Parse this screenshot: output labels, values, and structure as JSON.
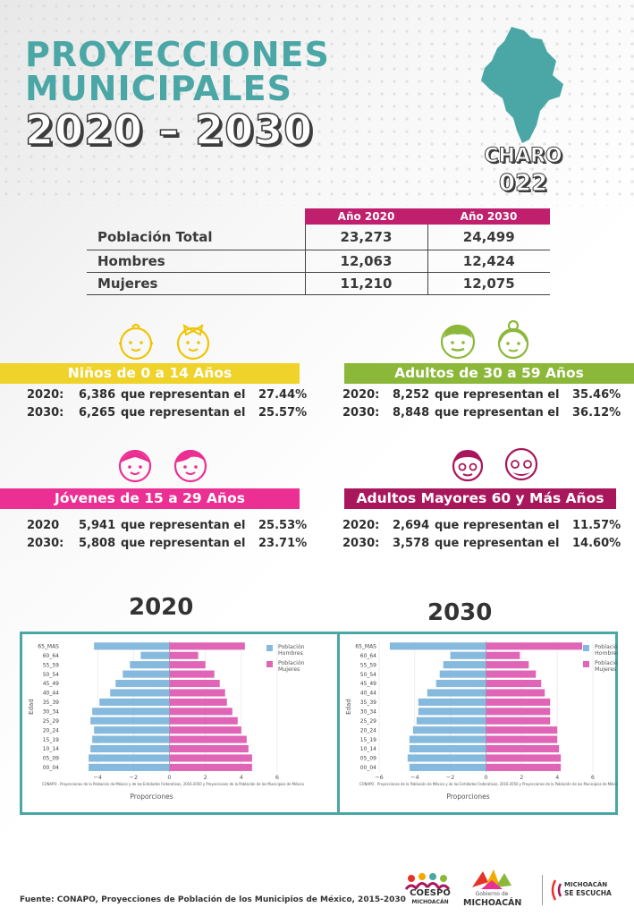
{
  "header": {
    "title_line1": "PROYECCIONES",
    "title_line2": "MUNICIPALES",
    "title_line3": "2020 – 2030",
    "municipality": "CHARO",
    "code": "022"
  },
  "colors": {
    "teal": "#4aa7a6",
    "magenta": "#bf1f6c",
    "yellow": "#f0d32a",
    "green": "#8cb83a",
    "pink": "#ec2f92",
    "purple": "#a8175c",
    "hombres": "#86b9de",
    "mujeres": "#e065b6"
  },
  "table": {
    "headers": [
      "Año 2020",
      "Año 2030"
    ],
    "rows": [
      {
        "label": "Población Total",
        "y2020": "23,273",
        "y2030": "24,499"
      },
      {
        "label": "Hombres",
        "y2020": "12,063",
        "y2030": "12,424"
      },
      {
        "label": "Mujeres",
        "y2020": "11,210",
        "y2030": "12,075"
      }
    ]
  },
  "groups": {
    "ninos": {
      "title": "Niños de 0 a 14 Años",
      "r1": {
        "year": "2020:",
        "count": "6,386",
        "text": "que representan el",
        "pct": "27.44%"
      },
      "r2": {
        "year": "2030:",
        "count": "6,265",
        "text": "que representan el",
        "pct": "25.57%"
      }
    },
    "adultos": {
      "title": "Adultos de 30 a 59 Años",
      "r1": {
        "year": "2020:",
        "count": "8,252",
        "text": "que representan el",
        "pct": "35.46%"
      },
      "r2": {
        "year": "2030:",
        "count": "8,848",
        "text": "que representan el",
        "pct": "36.12%"
      }
    },
    "jovenes": {
      "title": "Jóvenes de 15 a 29 Años",
      "r1": {
        "year": "2020",
        "count": "5,941",
        "text": "que representan el",
        "pct": "25.53%"
      },
      "r2": {
        "year": "2030:",
        "count": "5,808",
        "text": "que representan el",
        "pct": "23.71%"
      }
    },
    "mayores": {
      "title": "Adultos Mayores  60 y Más Años",
      "r1": {
        "year": "2020:",
        "count": "2,694",
        "text": "que representan el",
        "pct": "11.57%"
      },
      "r2": {
        "year": "2030:",
        "count": "3,578",
        "text": "que representan el",
        "pct": "14.60%"
      }
    }
  },
  "icons": [
    "baby-boy-icon",
    "baby-girl-icon",
    "adult-man-icon",
    "adult-woman-icon",
    "young-girl-icon",
    "young-boy-icon",
    "elder-woman-icon",
    "elder-man-icon"
  ],
  "chart_data": [
    {
      "type": "bar",
      "title": "2020",
      "orientation": "horizontal",
      "categories": [
        "00_04",
        "05_09",
        "10_14",
        "15_19",
        "20_24",
        "25_29",
        "30_34",
        "35_39",
        "40_44",
        "45_49",
        "50_54",
        "55_59",
        "60_64",
        "65_MAS"
      ],
      "series": [
        {
          "name": "Población Hombres",
          "values": [
            -4.5,
            -4.5,
            -4.4,
            -4.3,
            -4.2,
            -4.4,
            -4.3,
            -3.9,
            -3.3,
            -3.0,
            -2.6,
            -2.2,
            -1.6,
            -4.2
          ]
        },
        {
          "name": "Población Mujeres",
          "values": [
            4.6,
            4.6,
            4.4,
            4.3,
            4.0,
            3.8,
            3.5,
            3.2,
            3.1,
            2.8,
            2.5,
            2.0,
            1.6,
            4.2
          ]
        }
      ],
      "xlabel": "Proporciones",
      "ylabel": "Edad",
      "xticks": [
        "−4",
        "−2",
        "0",
        "2",
        "4",
        "6"
      ],
      "xlim": [
        -6,
        6
      ],
      "note": "CONAPO . Proyecciones de la Población de México y de las Entidades Federativas, 2016-2050 y Proyecciones de la Población de los Municipios de México"
    },
    {
      "type": "bar",
      "title": "2030",
      "orientation": "horizontal",
      "categories": [
        "00_04",
        "05_09",
        "10_14",
        "15_19",
        "20_24",
        "25_29",
        "30_34",
        "35_39",
        "40_44",
        "45_49",
        "50_54",
        "55_59",
        "60_64",
        "65_MAS"
      ],
      "series": [
        {
          "name": "Población Hombres",
          "values": [
            -4.3,
            -4.4,
            -4.3,
            -4.3,
            -4.1,
            -3.9,
            -3.8,
            -3.8,
            -3.3,
            -2.8,
            -2.6,
            -2.4,
            -2.0,
            -5.4
          ]
        },
        {
          "name": "Población Mujeres",
          "values": [
            4.2,
            4.2,
            4.1,
            4.0,
            4.0,
            3.6,
            3.6,
            3.6,
            3.3,
            3.1,
            2.8,
            2.4,
            1.9,
            5.4
          ]
        }
      ],
      "xlabel": "Proporciones",
      "ylabel": "Edad",
      "xticks": [
        "−6",
        "−4",
        "−2",
        "0",
        "2",
        "4",
        "6"
      ],
      "xlim": [
        -6,
        6
      ],
      "note": "CONAPO . Proyecciones de la Población de México y de las Entidades Federativas, 2016-2050 y Proyecciones de la Población de los Municipios de México"
    }
  ],
  "footer": {
    "source": "Fuente: CONAPO, Proyecciones de Población de los Municipios de México, 2015-2030",
    "logo1": "COESPO",
    "logo1_sub": "MICHOACÁN",
    "logo2_top": "Gobierno de",
    "logo2": "MICHOACÁN",
    "logo3_top": "MICHOACÁN",
    "logo3": "SE ESCUCHA"
  }
}
